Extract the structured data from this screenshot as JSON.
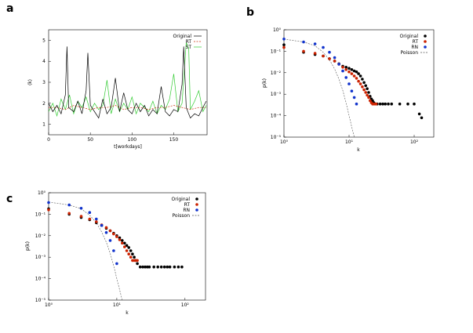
{
  "panel_labels": [
    "a",
    "b",
    "c"
  ],
  "colors": {
    "original": "#000000",
    "rt_line": "#cc3311",
    "st_line": "#33cc33",
    "rt_dot": "#cc2200",
    "rn_dot": "#1133cc",
    "poisson": "#555555"
  },
  "chart_data": [
    {
      "type": "line",
      "title": "",
      "xlabel": "t[workdays]",
      "ylabel": "⟨k⟩",
      "xlim": [
        0,
        190
      ],
      "ylim": [
        0.5,
        5.5
      ],
      "xticks": [
        "0",
        "50",
        "100",
        "150"
      ],
      "xtick_values": [
        0,
        50,
        100,
        150
      ],
      "yticks": [
        "1",
        "2",
        "3",
        "4",
        "5"
      ],
      "ytick_values": [
        1,
        2,
        3,
        4,
        5
      ],
      "legend_position": "top-right",
      "series": [
        {
          "name": "Original",
          "x": [
            0,
            5,
            10,
            15,
            20,
            22,
            24,
            30,
            35,
            40,
            45,
            47,
            50,
            55,
            60,
            65,
            70,
            75,
            80,
            85,
            90,
            95,
            100,
            105,
            110,
            115,
            120,
            125,
            130,
            135,
            140,
            145,
            150,
            155,
            160,
            162,
            165,
            170,
            175,
            180,
            185,
            189
          ],
          "values": [
            2.0,
            1.6,
            1.9,
            1.5,
            2.4,
            4.7,
            1.8,
            1.6,
            2.1,
            1.5,
            2.6,
            4.4,
            1.9,
            1.6,
            1.3,
            2.2,
            1.5,
            1.8,
            3.2,
            1.6,
            2.5,
            1.7,
            1.5,
            2.0,
            1.6,
            1.9,
            1.4,
            1.7,
            1.5,
            2.8,
            1.6,
            1.4,
            1.7,
            1.6,
            2.9,
            4.7,
            1.8,
            1.3,
            1.5,
            1.4,
            1.8,
            2.1
          ]
        },
        {
          "name": "RT",
          "x": [
            0,
            10,
            20,
            30,
            40,
            50,
            60,
            70,
            80,
            90,
            100,
            110,
            120,
            130,
            140,
            150,
            160,
            170,
            180,
            189
          ],
          "values": [
            1.8,
            1.8,
            1.7,
            1.9,
            1.8,
            1.7,
            1.8,
            1.8,
            1.9,
            1.7,
            1.8,
            1.8,
            1.7,
            1.8,
            1.8,
            1.9,
            1.8,
            1.7,
            1.8,
            1.8
          ]
        },
        {
          "name": "ST",
          "x": [
            0,
            5,
            10,
            15,
            20,
            25,
            30,
            35,
            40,
            45,
            50,
            55,
            60,
            65,
            70,
            75,
            80,
            85,
            90,
            95,
            100,
            105,
            110,
            115,
            120,
            125,
            130,
            135,
            140,
            145,
            150,
            155,
            160,
            165,
            168,
            170,
            175,
            180,
            185,
            189
          ],
          "values": [
            1.6,
            2.0,
            1.4,
            2.2,
            1.7,
            2.4,
            1.5,
            2.1,
            1.8,
            2.3,
            1.6,
            2.0,
            1.7,
            1.9,
            3.1,
            1.5,
            2.2,
            1.6,
            2.0,
            1.7,
            2.3,
            1.5,
            2.0,
            1.8,
            1.6,
            2.1,
            1.5,
            1.9,
            1.7,
            2.2,
            3.4,
            1.6,
            2.0,
            4.9,
            4.6,
            1.7,
            2.1,
            2.6,
            1.6,
            1.9
          ]
        }
      ]
    },
    {
      "type": "scatter",
      "title": "",
      "xlabel": "k",
      "ylabel": "p(k)",
      "xscale": "log",
      "yscale": "log",
      "xlim": [
        1,
        200
      ],
      "ylim": [
        1e-05,
        1
      ],
      "xticks": [
        "10⁰",
        "10¹",
        "10²"
      ],
      "xtick_values": [
        1,
        10,
        100
      ],
      "yticks": [
        "10⁰",
        "10⁻¹",
        "10⁻²",
        "10⁻³",
        "10⁻⁴",
        "10⁻⁵"
      ],
      "ytick_values": [
        1,
        0.1,
        0.01,
        0.001,
        0.0001,
        1e-05
      ],
      "legend_position": "top-right",
      "series": [
        {
          "name": "Original",
          "marker": "dot",
          "x": [
            1,
            2,
            3,
            4,
            5,
            6,
            7,
            8,
            9,
            10,
            11,
            12,
            13,
            14,
            15,
            16,
            17,
            18,
            19,
            20,
            21,
            22,
            23,
            24,
            25,
            27,
            30,
            33,
            36,
            40,
            45,
            60,
            80,
            100,
            120,
            130
          ],
          "values": [
            0.2,
            0.09,
            0.07,
            0.06,
            0.045,
            0.035,
            0.026,
            0.02,
            0.018,
            0.016,
            0.014,
            0.012,
            0.011,
            0.009,
            0.007,
            0.005,
            0.0035,
            0.0025,
            0.0018,
            0.0012,
            0.0008,
            0.0006,
            0.0005,
            0.0004,
            0.00035,
            0.00035,
            0.00035,
            0.00035,
            0.00035,
            0.00035,
            0.00035,
            0.00035,
            0.00035,
            0.00035,
            0.00012,
            8e-05
          ]
        },
        {
          "name": "RT",
          "marker": "dot",
          "x": [
            1,
            2,
            3,
            4,
            5,
            6,
            7,
            8,
            9,
            10,
            11,
            12,
            13,
            14,
            15,
            16,
            17,
            18,
            19,
            20,
            21,
            22,
            23,
            24,
            25,
            26
          ],
          "values": [
            0.15,
            0.1,
            0.08,
            0.06,
            0.045,
            0.035,
            0.025,
            0.018,
            0.014,
            0.011,
            0.009,
            0.007,
            0.0055,
            0.004,
            0.003,
            0.0022,
            0.0016,
            0.0012,
            0.0009,
            0.0007,
            0.0005,
            0.0004,
            0.00035,
            0.00035,
            0.00035,
            0.00035
          ]
        },
        {
          "name": "RN",
          "marker": "dot",
          "x": [
            1,
            2,
            3,
            4,
            5,
            6,
            7,
            8,
            9,
            10,
            11,
            12,
            13
          ],
          "values": [
            0.37,
            0.27,
            0.22,
            0.15,
            0.09,
            0.05,
            0.025,
            0.012,
            0.006,
            0.003,
            0.0014,
            0.0007,
            0.00035
          ]
        },
        {
          "name": "Poisson",
          "marker": "dashed",
          "x": [
            1,
            2,
            3,
            4,
            5,
            6,
            7,
            8,
            9,
            10,
            11,
            12
          ],
          "values": [
            0.368,
            0.27,
            0.18,
            0.09,
            0.04,
            0.015,
            0.005,
            0.0015,
            0.0004,
            0.0001,
            3e-05,
            1e-05
          ]
        }
      ]
    },
    {
      "type": "scatter",
      "title": "",
      "xlabel": "k",
      "ylabel": "p(k)",
      "xscale": "log",
      "yscale": "log",
      "xlim": [
        1,
        200
      ],
      "ylim": [
        1e-05,
        1
      ],
      "xticks": [
        "10⁰",
        "10¹",
        "10²"
      ],
      "xtick_values": [
        1,
        10,
        100
      ],
      "yticks": [
        "10⁰",
        "10⁻¹",
        "10⁻²",
        "10⁻³",
        "10⁻⁴",
        "10⁻⁵"
      ],
      "ytick_values": [
        1,
        0.1,
        0.01,
        0.001,
        0.0001,
        1e-05
      ],
      "legend_position": "top-right",
      "series": [
        {
          "name": "Original",
          "marker": "dot",
          "x": [
            1,
            2,
            3,
            4,
            5,
            6,
            7,
            8,
            9,
            10,
            11,
            12,
            13,
            14,
            15,
            16,
            17,
            18,
            19,
            20,
            22,
            24,
            26,
            28,
            30,
            35,
            40,
            45,
            50,
            55,
            60,
            70,
            80,
            90
          ],
          "values": [
            0.18,
            0.1,
            0.07,
            0.055,
            0.04,
            0.03,
            0.022,
            0.017,
            0.013,
            0.01,
            0.008,
            0.006,
            0.0045,
            0.0035,
            0.0028,
            0.002,
            0.0014,
            0.001,
            0.0007,
            0.0005,
            0.00035,
            0.00035,
            0.00035,
            0.00035,
            0.00035,
            0.00035,
            0.00035,
            0.00035,
            0.00035,
            0.00035,
            0.00035,
            0.00035,
            0.00035,
            0.00035
          ]
        },
        {
          "name": "RT",
          "marker": "dot",
          "x": [
            1,
            2,
            3,
            4,
            5,
            6,
            7,
            8,
            9,
            10,
            11,
            12,
            13,
            14,
            15,
            16,
            17,
            18,
            19,
            20
          ],
          "values": [
            0.16,
            0.11,
            0.08,
            0.06,
            0.045,
            0.032,
            0.024,
            0.017,
            0.012,
            0.009,
            0.0065,
            0.0045,
            0.003,
            0.002,
            0.0014,
            0.001,
            0.0007,
            0.0007,
            0.0007,
            0.0007
          ]
        },
        {
          "name": "RN",
          "marker": "dot",
          "x": [
            1,
            2,
            3,
            4,
            5,
            6,
            7,
            8,
            9,
            10
          ],
          "values": [
            0.35,
            0.27,
            0.19,
            0.12,
            0.06,
            0.03,
            0.014,
            0.006,
            0.002,
            0.0005
          ]
        },
        {
          "name": "Poisson",
          "marker": "dashed",
          "x": [
            1,
            2,
            3,
            4,
            5,
            6,
            7,
            8,
            9,
            10,
            11,
            12
          ],
          "values": [
            0.368,
            0.27,
            0.18,
            0.09,
            0.04,
            0.015,
            0.005,
            0.0015,
            0.0004,
            0.0001,
            3e-05,
            1e-05
          ]
        }
      ]
    }
  ]
}
